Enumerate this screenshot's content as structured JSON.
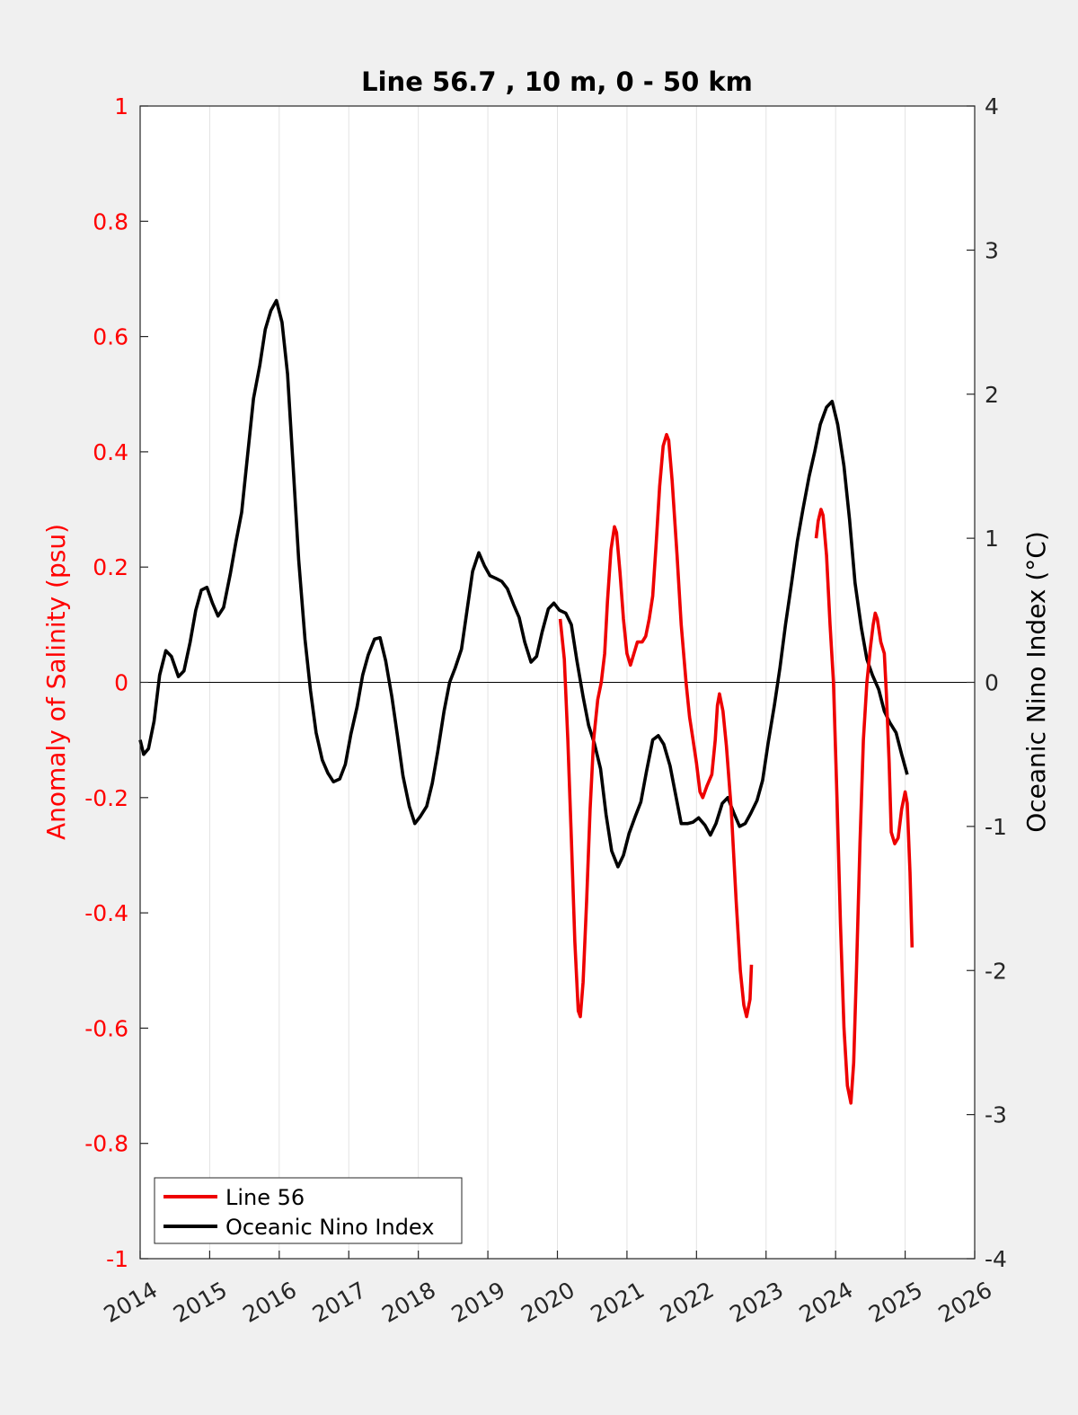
{
  "chart_data": {
    "type": "line",
    "title": "Line 56.7 , 10 m, 0 - 50 km",
    "xlabel": "",
    "ylabel_left": "Anomaly of Salinity (psu)",
    "ylabel_right": "Oceanic Nino Index (°C)",
    "xlim": [
      2014,
      2026
    ],
    "ylim_left": [
      -1,
      1
    ],
    "ylim_right": [
      -4,
      4
    ],
    "x_ticks": [
      "2014",
      "2015",
      "2016",
      "2017",
      "2018",
      "2019",
      "2020",
      "2021",
      "2022",
      "2023",
      "2024",
      "2025",
      "2026"
    ],
    "y_ticks_left": [
      "-1",
      "-0.8",
      "-0.6",
      "-0.4",
      "-0.2",
      "0",
      "0.2",
      "0.4",
      "0.6",
      "0.8",
      "1"
    ],
    "y_ticks_right": [
      "-4",
      "-3",
      "-2",
      "-1",
      "0",
      "1",
      "2",
      "3",
      "4"
    ],
    "grid": "vertical",
    "zero_line": true,
    "legend_position": "bottom-left",
    "colors": {
      "left_axis": "#ff0000",
      "salinity": "#ee0000",
      "oni": "#000000",
      "background": "#f0f0f0",
      "plot_bg": "#ffffff",
      "grid": "#e3e3e3"
    },
    "series": [
      {
        "name": "Line 56",
        "axis": "left",
        "segments": [
          [
            [
              2020.04,
              0.11
            ],
            [
              2020.1,
              0.04
            ],
            [
              2020.15,
              -0.1
            ],
            [
              2020.2,
              -0.27
            ],
            [
              2020.25,
              -0.45
            ],
            [
              2020.3,
              -0.57
            ],
            [
              2020.33,
              -0.58
            ],
            [
              2020.37,
              -0.52
            ],
            [
              2020.42,
              -0.38
            ],
            [
              2020.47,
              -0.22
            ],
            [
              2020.52,
              -0.1
            ],
            [
              2020.58,
              -0.03
            ],
            [
              2020.63,
              0.0
            ],
            [
              2020.68,
              0.05
            ],
            [
              2020.72,
              0.14
            ],
            [
              2020.77,
              0.23
            ],
            [
              2020.82,
              0.27
            ],
            [
              2020.85,
              0.26
            ],
            [
              2020.9,
              0.19
            ],
            [
              2020.95,
              0.11
            ],
            [
              2021.0,
              0.05
            ],
            [
              2021.05,
              0.03
            ],
            [
              2021.1,
              0.05
            ],
            [
              2021.15,
              0.07
            ],
            [
              2021.22,
              0.07
            ],
            [
              2021.27,
              0.08
            ],
            [
              2021.32,
              0.11
            ],
            [
              2021.37,
              0.15
            ],
            [
              2021.42,
              0.24
            ],
            [
              2021.47,
              0.34
            ],
            [
              2021.52,
              0.41
            ],
            [
              2021.57,
              0.43
            ],
            [
              2021.6,
              0.42
            ],
            [
              2021.65,
              0.35
            ],
            [
              2021.72,
              0.22
            ],
            [
              2021.78,
              0.1
            ],
            [
              2021.85,
              0.0
            ],
            [
              2021.9,
              -0.06
            ],
            [
              2021.95,
              -0.1
            ],
            [
              2022.0,
              -0.14
            ],
            [
              2022.05,
              -0.19
            ],
            [
              2022.09,
              -0.2
            ],
            [
              2022.15,
              -0.18
            ],
            [
              2022.22,
              -0.16
            ],
            [
              2022.27,
              -0.1
            ],
            [
              2022.3,
              -0.04
            ],
            [
              2022.33,
              -0.02
            ],
            [
              2022.38,
              -0.05
            ],
            [
              2022.43,
              -0.11
            ],
            [
              2022.5,
              -0.22
            ],
            [
              2022.57,
              -0.38
            ],
            [
              2022.63,
              -0.5
            ],
            [
              2022.68,
              -0.56
            ],
            [
              2022.72,
              -0.58
            ],
            [
              2022.77,
              -0.55
            ],
            [
              2022.79,
              -0.49
            ]
          ],
          [
            [
              2023.72,
              0.25
            ],
            [
              2023.75,
              0.28
            ],
            [
              2023.79,
              0.3
            ],
            [
              2023.82,
              0.29
            ],
            [
              2023.87,
              0.22
            ],
            [
              2023.92,
              0.1
            ],
            [
              2023.97,
              0.0
            ],
            [
              2024.02,
              -0.2
            ],
            [
              2024.07,
              -0.42
            ],
            [
              2024.12,
              -0.6
            ],
            [
              2024.17,
              -0.7
            ],
            [
              2024.22,
              -0.73
            ],
            [
              2024.26,
              -0.66
            ],
            [
              2024.3,
              -0.5
            ],
            [
              2024.35,
              -0.28
            ],
            [
              2024.4,
              -0.1
            ],
            [
              2024.45,
              0.0
            ],
            [
              2024.5,
              0.06
            ],
            [
              2024.54,
              0.1
            ],
            [
              2024.57,
              0.12
            ],
            [
              2024.6,
              0.11
            ],
            [
              2024.65,
              0.07
            ],
            [
              2024.7,
              0.05
            ],
            [
              2024.73,
              -0.02
            ],
            [
              2024.77,
              -0.14
            ],
            [
              2024.8,
              -0.26
            ],
            [
              2024.85,
              -0.28
            ],
            [
              2024.9,
              -0.27
            ],
            [
              2024.95,
              -0.22
            ],
            [
              2025.0,
              -0.19
            ],
            [
              2025.03,
              -0.21
            ],
            [
              2025.07,
              -0.33
            ],
            [
              2025.1,
              -0.46
            ]
          ]
        ]
      },
      {
        "name": "Oceanic Nino Index",
        "axis": "right",
        "segments": [
          [
            [
              2014.0,
              -0.4
            ],
            [
              2014.05,
              -0.5
            ],
            [
              2014.12,
              -0.46
            ],
            [
              2014.2,
              -0.27
            ],
            [
              2014.28,
              0.05
            ],
            [
              2014.37,
              0.22
            ],
            [
              2014.45,
              0.18
            ],
            [
              2014.55,
              0.04
            ],
            [
              2014.63,
              0.08
            ],
            [
              2014.72,
              0.28
            ],
            [
              2014.8,
              0.5
            ],
            [
              2014.88,
              0.64
            ],
            [
              2014.96,
              0.66
            ],
            [
              2015.04,
              0.55
            ],
            [
              2015.12,
              0.46
            ],
            [
              2015.2,
              0.52
            ],
            [
              2015.3,
              0.76
            ],
            [
              2015.38,
              0.98
            ],
            [
              2015.46,
              1.18
            ],
            [
              2015.55,
              1.6
            ],
            [
              2015.63,
              1.97
            ],
            [
              2015.72,
              2.2
            ],
            [
              2015.8,
              2.45
            ],
            [
              2015.88,
              2.58
            ],
            [
              2015.96,
              2.65
            ],
            [
              2016.04,
              2.5
            ],
            [
              2016.12,
              2.14
            ],
            [
              2016.2,
              1.5
            ],
            [
              2016.28,
              0.85
            ],
            [
              2016.37,
              0.3
            ],
            [
              2016.45,
              -0.06
            ],
            [
              2016.53,
              -0.35
            ],
            [
              2016.62,
              -0.54
            ],
            [
              2016.7,
              -0.63
            ],
            [
              2016.78,
              -0.69
            ],
            [
              2016.87,
              -0.67
            ],
            [
              2016.95,
              -0.57
            ],
            [
              2017.03,
              -0.36
            ],
            [
              2017.12,
              -0.17
            ],
            [
              2017.2,
              0.05
            ],
            [
              2017.28,
              0.19
            ],
            [
              2017.37,
              0.3
            ],
            [
              2017.45,
              0.31
            ],
            [
              2017.53,
              0.15
            ],
            [
              2017.62,
              -0.1
            ],
            [
              2017.7,
              -0.37
            ],
            [
              2017.78,
              -0.65
            ],
            [
              2017.87,
              -0.86
            ],
            [
              2017.95,
              -0.98
            ],
            [
              2018.03,
              -0.93
            ],
            [
              2018.12,
              -0.86
            ],
            [
              2018.2,
              -0.7
            ],
            [
              2018.28,
              -0.48
            ],
            [
              2018.37,
              -0.2
            ],
            [
              2018.45,
              0.0
            ],
            [
              2018.53,
              0.1
            ],
            [
              2018.62,
              0.23
            ],
            [
              2018.7,
              0.5
            ],
            [
              2018.78,
              0.77
            ],
            [
              2018.87,
              0.9
            ],
            [
              2018.95,
              0.81
            ],
            [
              2019.03,
              0.74
            ],
            [
              2019.12,
              0.72
            ],
            [
              2019.2,
              0.7
            ],
            [
              2019.28,
              0.65
            ],
            [
              2019.37,
              0.54
            ],
            [
              2019.45,
              0.45
            ],
            [
              2019.53,
              0.28
            ],
            [
              2019.62,
              0.14
            ],
            [
              2019.7,
              0.18
            ],
            [
              2019.78,
              0.35
            ],
            [
              2019.87,
              0.51
            ],
            [
              2019.95,
              0.55
            ],
            [
              2020.03,
              0.5
            ],
            [
              2020.12,
              0.48
            ],
            [
              2020.2,
              0.4
            ],
            [
              2020.28,
              0.15
            ],
            [
              2020.37,
              -0.1
            ],
            [
              2020.45,
              -0.3
            ],
            [
              2020.53,
              -0.42
            ],
            [
              2020.62,
              -0.6
            ],
            [
              2020.7,
              -0.92
            ],
            [
              2020.78,
              -1.17
            ],
            [
              2020.87,
              -1.28
            ],
            [
              2020.95,
              -1.2
            ],
            [
              2021.03,
              -1.05
            ],
            [
              2021.12,
              -0.93
            ],
            [
              2021.2,
              -0.83
            ],
            [
              2021.28,
              -0.62
            ],
            [
              2021.37,
              -0.4
            ],
            [
              2021.45,
              -0.37
            ],
            [
              2021.53,
              -0.43
            ],
            [
              2021.62,
              -0.58
            ],
            [
              2021.7,
              -0.78
            ],
            [
              2021.78,
              -0.98
            ],
            [
              2021.87,
              -0.98
            ],
            [
              2021.95,
              -0.97
            ],
            [
              2022.03,
              -0.94
            ],
            [
              2022.12,
              -0.99
            ],
            [
              2022.2,
              -1.06
            ],
            [
              2022.28,
              -0.98
            ],
            [
              2022.37,
              -0.84
            ],
            [
              2022.45,
              -0.8
            ],
            [
              2022.53,
              -0.9
            ],
            [
              2022.62,
              -1.0
            ],
            [
              2022.7,
              -0.98
            ],
            [
              2022.78,
              -0.91
            ],
            [
              2022.87,
              -0.82
            ],
            [
              2022.95,
              -0.68
            ],
            [
              2023.03,
              -0.42
            ],
            [
              2023.12,
              -0.16
            ],
            [
              2023.2,
              0.1
            ],
            [
              2023.28,
              0.4
            ],
            [
              2023.37,
              0.7
            ],
            [
              2023.45,
              0.98
            ],
            [
              2023.53,
              1.2
            ],
            [
              2023.62,
              1.43
            ],
            [
              2023.7,
              1.6
            ],
            [
              2023.78,
              1.79
            ],
            [
              2023.87,
              1.91
            ],
            [
              2023.95,
              1.95
            ],
            [
              2024.03,
              1.79
            ],
            [
              2024.12,
              1.5
            ],
            [
              2024.2,
              1.13
            ],
            [
              2024.28,
              0.69
            ],
            [
              2024.37,
              0.38
            ],
            [
              2024.45,
              0.16
            ],
            [
              2024.53,
              0.05
            ],
            [
              2024.62,
              -0.05
            ],
            [
              2024.7,
              -0.2
            ],
            [
              2024.78,
              -0.28
            ],
            [
              2024.87,
              -0.35
            ],
            [
              2024.95,
              -0.5
            ],
            [
              2025.03,
              -0.64
            ]
          ]
        ]
      }
    ]
  }
}
